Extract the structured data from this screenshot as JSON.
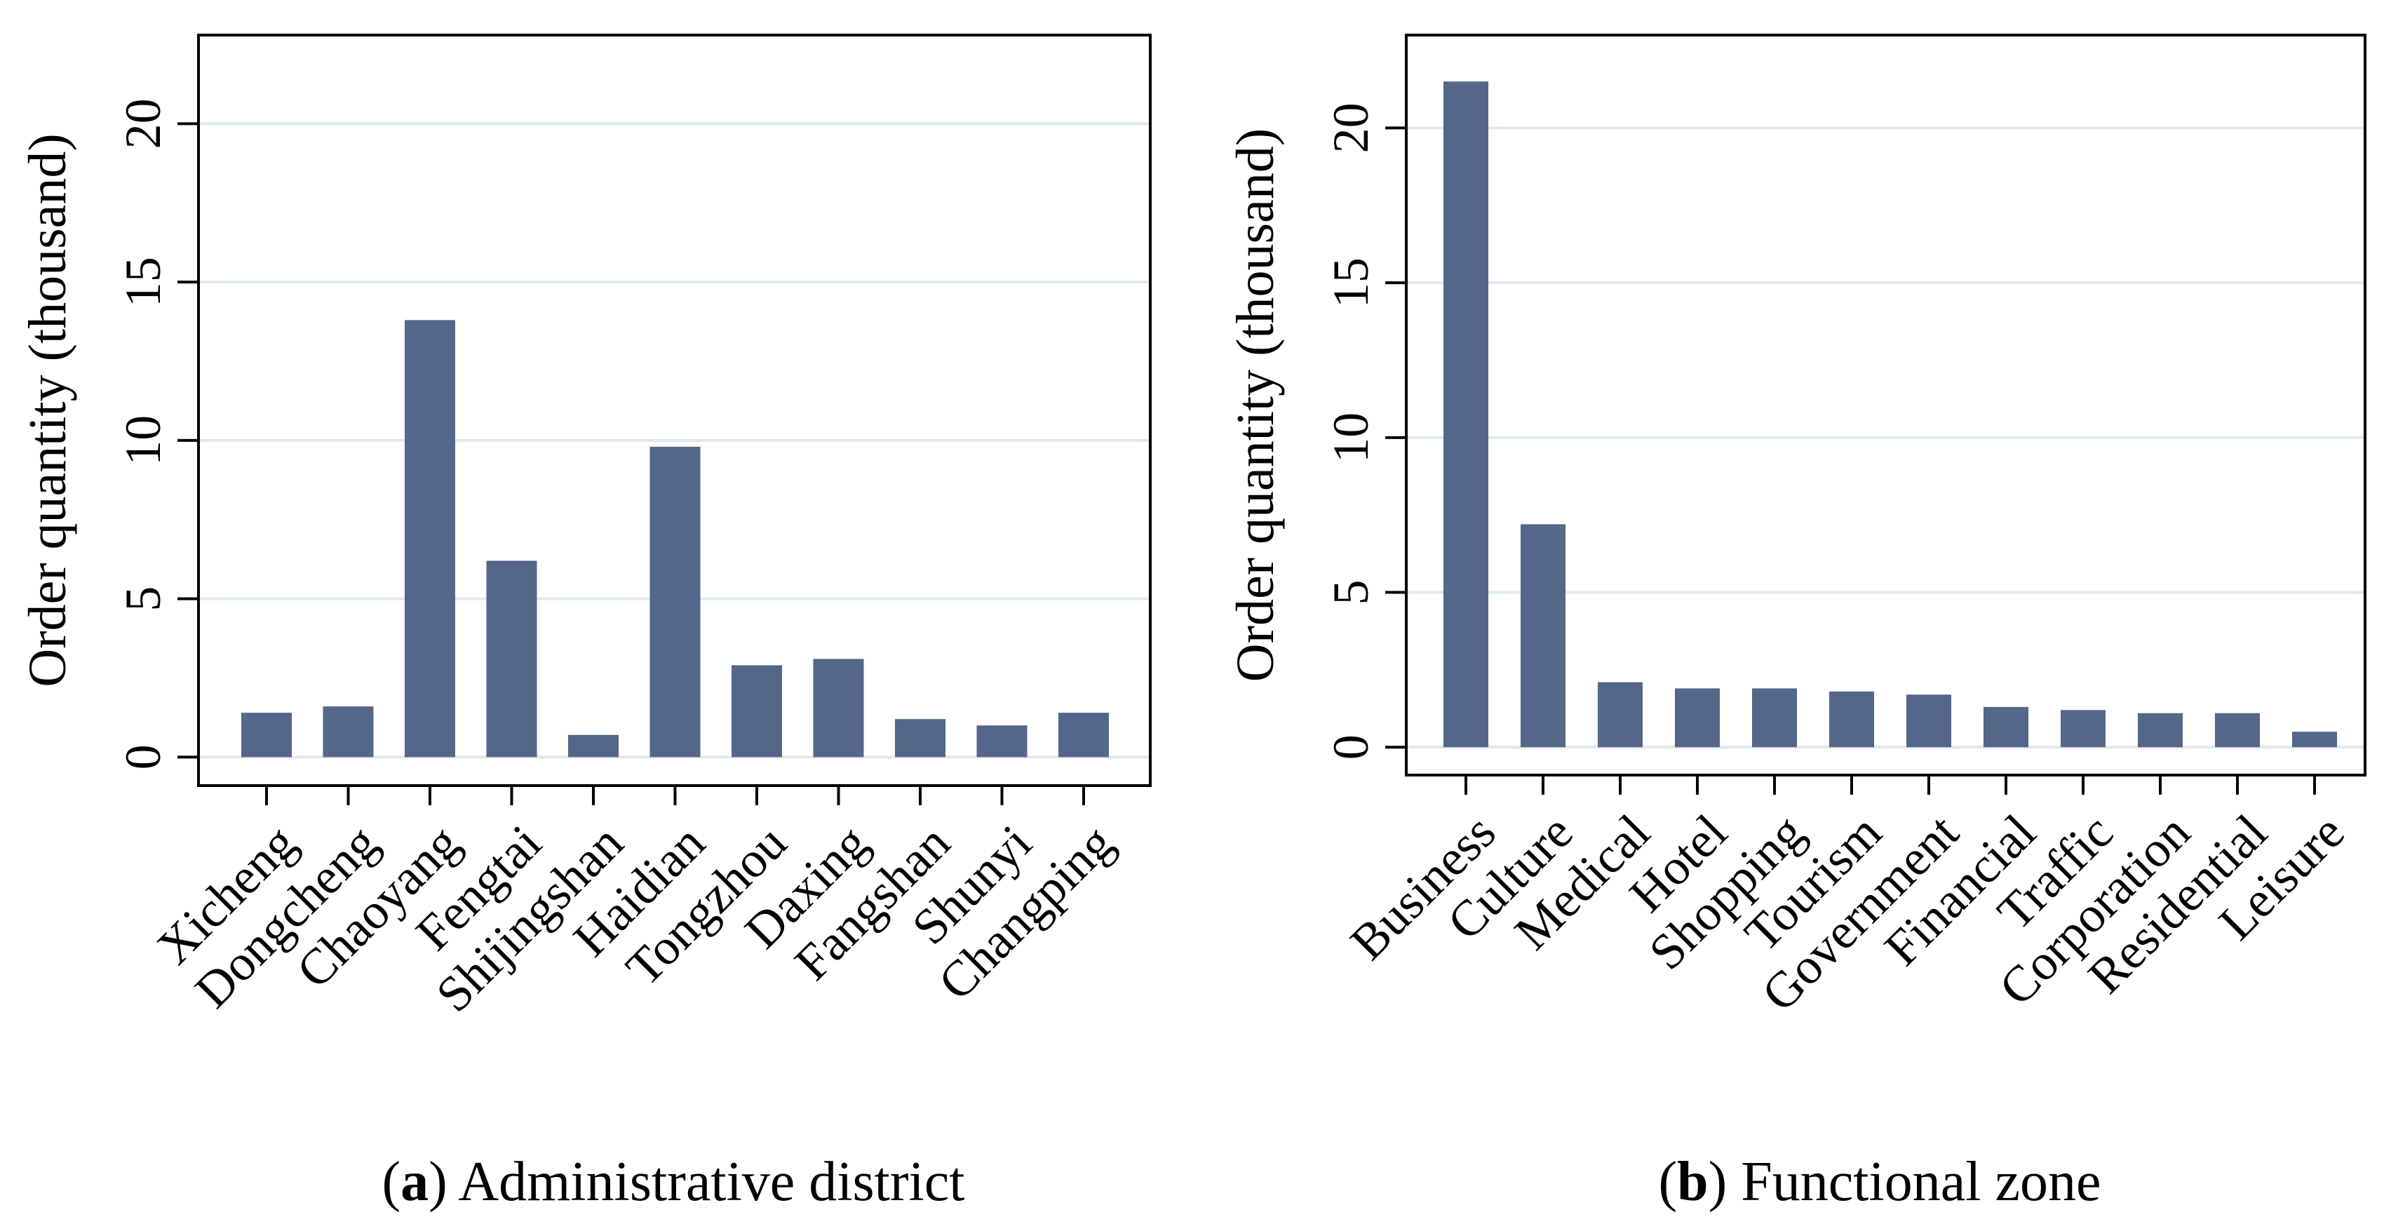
{
  "colors": {
    "bar": "#54668a",
    "grid": "#dfe8ea",
    "axis": "#000000",
    "text": "#000000"
  },
  "chart_data": [
    {
      "type": "bar",
      "title": "",
      "xlabel": "",
      "ylabel": "Order quantity (thousand)",
      "ylim": [
        -0.9,
        22.8
      ],
      "yticks": [
        0,
        5,
        10,
        15,
        20
      ],
      "grid": true,
      "categories": [
        "Xicheng",
        "Dongcheng",
        "Chaoyang",
        "Fengtai",
        "Shijingshan",
        "Haidian",
        "Tongzhou",
        "Daxing",
        "Fangshan",
        "Shunyi",
        "Changping"
      ],
      "values": [
        1.4,
        1.6,
        13.8,
        6.2,
        0.7,
        9.8,
        2.9,
        3.1,
        1.2,
        1.0,
        1.4
      ]
    },
    {
      "type": "bar",
      "title": "",
      "xlabel": "",
      "ylabel": "Order quantity (thousand)",
      "ylim": [
        -0.9,
        23.0
      ],
      "yticks": [
        0,
        5,
        10,
        15,
        20
      ],
      "grid": true,
      "categories": [
        "Business",
        "Culture",
        "Medical",
        "Hotel",
        "Shopping",
        "Tourism",
        "Government",
        "Financial",
        "Traffic",
        "Corporation",
        "Residential",
        "Leisure"
      ],
      "values": [
        21.5,
        7.2,
        2.1,
        1.9,
        1.9,
        1.8,
        1.7,
        1.3,
        1.2,
        1.1,
        1.1,
        0.5
      ]
    }
  ],
  "captions": [
    {
      "letter": "a",
      "text": "Administrative district"
    },
    {
      "letter": "b",
      "text": "Functional zone"
    }
  ]
}
